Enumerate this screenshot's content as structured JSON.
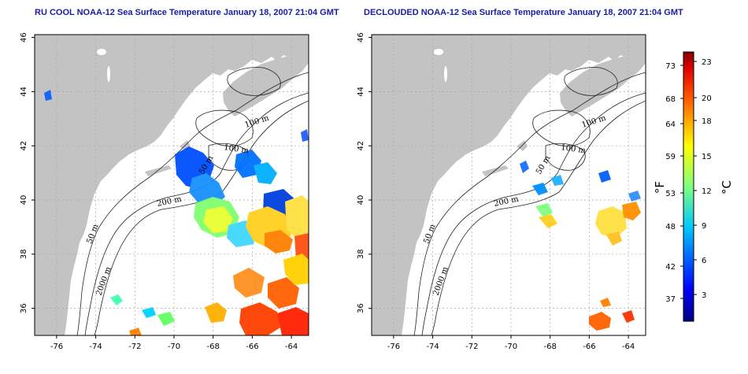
{
  "panels": [
    {
      "title": "RU COOL NOAA-12 Sea Surface Temperature January 18, 2007 21:04 GMT"
    },
    {
      "title": "DECLOUDED NOAA-12 Sea Surface Temperature January 18, 2007 21:04 GMT"
    }
  ],
  "axes": {
    "lon_ticks": [
      "-76",
      "-74",
      "-72",
      "-70",
      "-68",
      "-66",
      "-64"
    ],
    "lat_ticks": [
      "46",
      "44",
      "42",
      "40",
      "38",
      "36"
    ],
    "lon_range": [
      -77,
      -63
    ],
    "lat_range": [
      35,
      46
    ]
  },
  "contour_labels": {
    "left": [
      "100 m",
      "100 m",
      "50 m",
      "200 m",
      "50 m",
      "2000 m"
    ],
    "right": [
      "100 m",
      "100 m",
      "50 m",
      "200 m",
      "50 m",
      "2000 m"
    ]
  },
  "colorbar": {
    "fahrenheit_unit": "°F",
    "celsius_unit": "°C",
    "fahrenheit_ticks": [
      "73",
      "68",
      "64",
      "59",
      "53",
      "48",
      "42",
      "37"
    ],
    "celsius_ticks": [
      "23",
      "20",
      "18",
      "15",
      "12",
      "9",
      "6",
      "3"
    ]
  },
  "colors": {
    "land": "#c3c3c3",
    "title": "#1a1aa8",
    "colormap": [
      "#000080",
      "#0000ff",
      "#0080ff",
      "#00ffff",
      "#80ff80",
      "#ffff00",
      "#ff8000",
      "#ff0000",
      "#800000"
    ]
  }
}
